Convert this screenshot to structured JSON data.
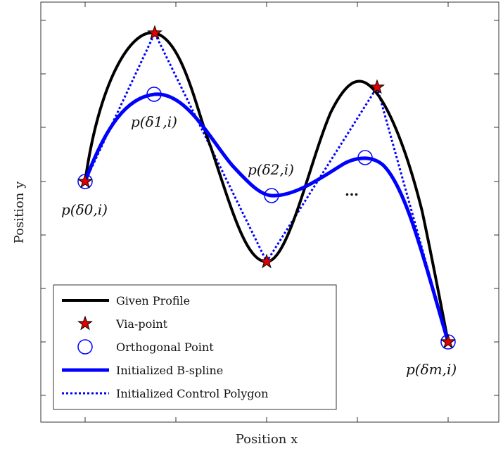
{
  "axes": {
    "x_label": "Position x",
    "y_label": "Position y"
  },
  "annotations": {
    "p0": "p(δ0,i)",
    "p1": "p(δ1,i)",
    "p2": "p(δ2,i)",
    "pm": "p(δm,i)",
    "ellipsis": "…"
  },
  "legend": {
    "items": [
      {
        "label": "Given Profile",
        "style": "solid-black"
      },
      {
        "label": "Via-point",
        "style": "red-star"
      },
      {
        "label": "Orthogonal Point",
        "style": "blue-circle"
      },
      {
        "label": "Initialized B-spline",
        "style": "thick-blue"
      },
      {
        "label": "Initialized Control Polygon",
        "style": "dotted-blue"
      }
    ]
  },
  "colors": {
    "profile": "#000000",
    "via_point": "#e00000",
    "spline": "#0000ff",
    "polygon": "#0000ff",
    "orthogonal": "#0000ff"
  }
}
